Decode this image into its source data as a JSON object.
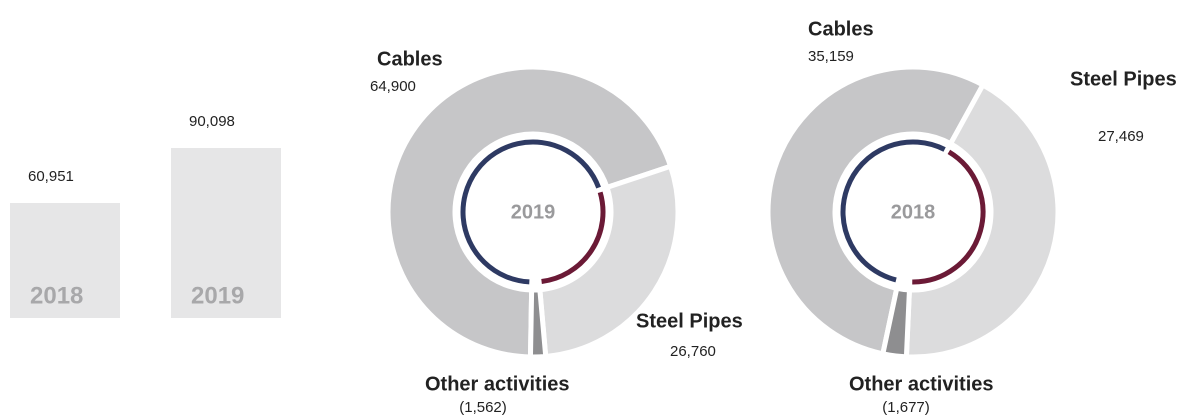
{
  "chart_data": [
    {
      "type": "bar",
      "categories": [
        "2018",
        "2019"
      ],
      "values": [
        60951,
        90098
      ],
      "value_labels": [
        "60,951",
        "90,098"
      ],
      "color": "#e6e6e7"
    },
    {
      "type": "donut",
      "center_label": "2019",
      "categories": [
        "Cables",
        "Steel Pipes",
        "Other activities"
      ],
      "values": [
        64900,
        26760,
        1562
      ],
      "value_labels": [
        "64,900",
        "26,760",
        "(1,562)"
      ],
      "colors": [
        "#c6c6c8",
        "#dcdcdd",
        "#8e8e90"
      ],
      "ring_colors": [
        "#2e3a63",
        "#6b1a36",
        "#ffffff"
      ]
    },
    {
      "type": "donut",
      "center_label": "2018",
      "categories": [
        "Cables",
        "Steel Pipes",
        "Other activities"
      ],
      "values": [
        35159,
        27469,
        1677
      ],
      "value_labels": [
        "35,159",
        "27,469",
        "(1,677)"
      ],
      "colors": [
        "#c6c6c8",
        "#dcdcdd",
        "#8e8e90"
      ],
      "ring_colors": [
        "#2e3a63",
        "#6b1a36",
        "#ffffff"
      ]
    }
  ]
}
